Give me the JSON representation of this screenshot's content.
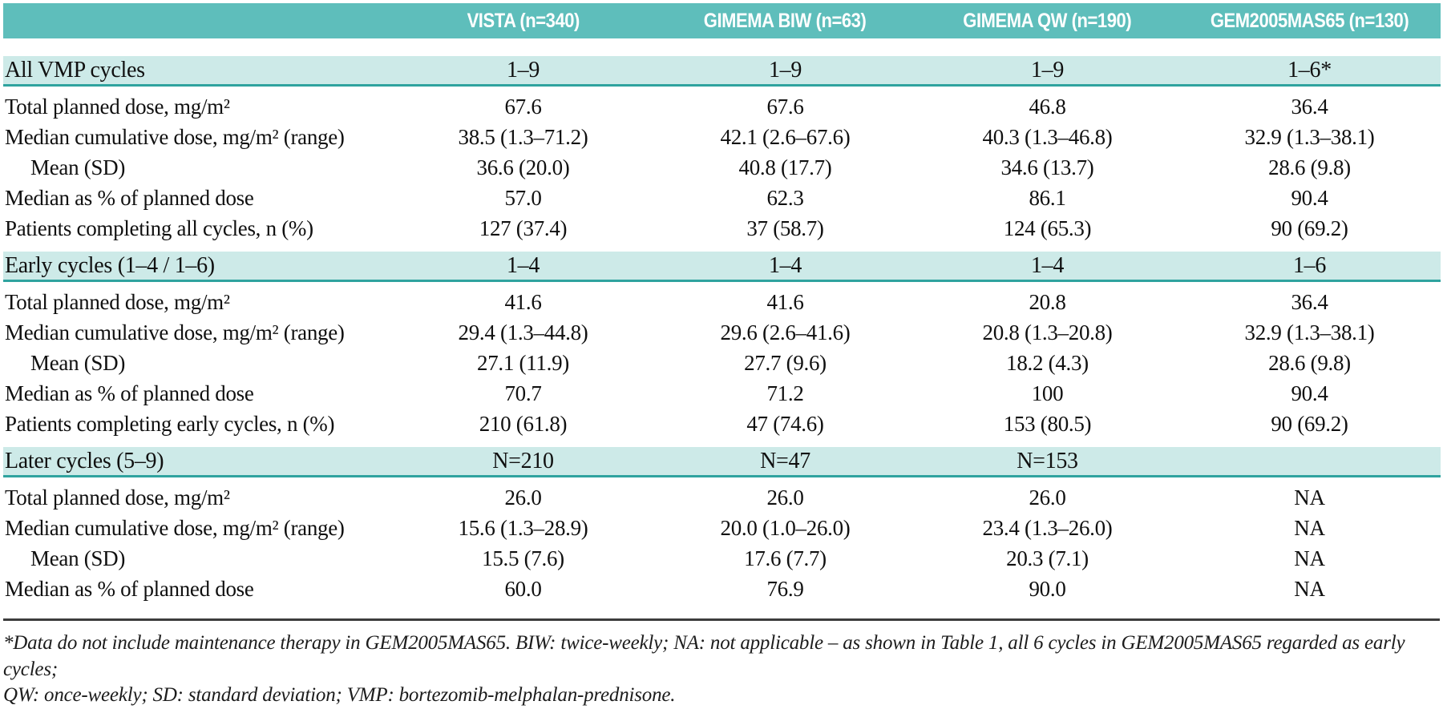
{
  "table": {
    "columns": [
      {
        "label": ""
      },
      {
        "label": "VISTA (n=340)"
      },
      {
        "label": "GIMEMA BIW (n=63)"
      },
      {
        "label": "GIMEMA QW (n=190)"
      },
      {
        "label": "GEM2005MAS65 (n=130)"
      }
    ],
    "sections": [
      {
        "label": "All VMP cycles",
        "values": [
          "1–9",
          "1–9",
          "1–9",
          "1–6*"
        ],
        "rows": [
          {
            "label": "Total planned dose, mg/m²",
            "indent": false,
            "values": [
              "67.6",
              "67.6",
              "46.8",
              "36.4"
            ]
          },
          {
            "label": "Median cumulative dose, mg/m² (range)",
            "indent": false,
            "values": [
              "38.5 (1.3–71.2)",
              "42.1 (2.6–67.6)",
              "40.3 (1.3–46.8)",
              "32.9 (1.3–38.1)"
            ]
          },
          {
            "label": "Mean (SD)",
            "indent": true,
            "values": [
              "36.6 (20.0)",
              "40.8 (17.7)",
              "34.6 (13.7)",
              "28.6 (9.8)"
            ]
          },
          {
            "label": "Median as % of planned dose",
            "indent": false,
            "values": [
              "57.0",
              "62.3",
              "86.1",
              "90.4"
            ]
          },
          {
            "label": "Patients completing all cycles, n (%)",
            "indent": false,
            "values": [
              "127 (37.4)",
              "37 (58.7)",
              "124 (65.3)",
              "90 (69.2)"
            ]
          }
        ]
      },
      {
        "label": "Early cycles (1–4 / 1–6)",
        "values": [
          "1–4",
          "1–4",
          "1–4",
          "1–6"
        ],
        "rows": [
          {
            "label": "Total planned dose, mg/m²",
            "indent": false,
            "values": [
              "41.6",
              "41.6",
              "20.8",
              "36.4"
            ]
          },
          {
            "label": "Median cumulative dose, mg/m² (range)",
            "indent": false,
            "values": [
              "29.4 (1.3–44.8)",
              "29.6 (2.6–41.6)",
              "20.8 (1.3–20.8)",
              "32.9 (1.3–38.1)"
            ]
          },
          {
            "label": "Mean (SD)",
            "indent": true,
            "values": [
              "27.1 (11.9)",
              "27.7 (9.6)",
              "18.2 (4.3)",
              "28.6 (9.8)"
            ]
          },
          {
            "label": "Median as % of planned dose",
            "indent": false,
            "values": [
              "70.7",
              "71.2",
              "100",
              "90.4"
            ]
          },
          {
            "label": "Patients completing early cycles, n (%)",
            "indent": false,
            "values": [
              "210 (61.8)",
              "47 (74.6)",
              "153 (80.5)",
              "90 (69.2)"
            ]
          }
        ]
      },
      {
        "label": "Later cycles (5–9)",
        "values": [
          "N=210",
          "N=47",
          "N=153",
          ""
        ],
        "rows": [
          {
            "label": "Total planned dose, mg/m²",
            "indent": false,
            "values": [
              "26.0",
              "26.0",
              "26.0",
              "NA"
            ]
          },
          {
            "label": "Median cumulative dose, mg/m² (range)",
            "indent": false,
            "values": [
              "15.6 (1.3–28.9)",
              "20.0 (1.0–26.0)",
              "23.4 (1.3–26.0)",
              "NA"
            ]
          },
          {
            "label": "Mean (SD)",
            "indent": true,
            "values": [
              "15.5 (7.6)",
              "17.6 (7.7)",
              "20.3 (7.1)",
              "NA"
            ]
          },
          {
            "label": "Median as % of planned dose",
            "indent": false,
            "values": [
              "60.0",
              "76.9",
              "90.0",
              "NA"
            ]
          }
        ]
      }
    ]
  },
  "footnote": {
    "line1": "*Data do not include maintenance therapy in GEM2005MAS65. BIW: twice-weekly; NA: not applicable – as shown in Table 1, all 6 cycles in GEM2005MAS65 regarded as early cycles;",
    "line2": "QW: once-weekly; SD: standard deviation; VMP: bortezomib-melphalan-prednisone."
  },
  "colors": {
    "header_teal": "#5ebebb",
    "band_teal": "#cdeae8",
    "band_border_teal": "#2fa39f",
    "rule_gray": "#3d3d3d"
  }
}
